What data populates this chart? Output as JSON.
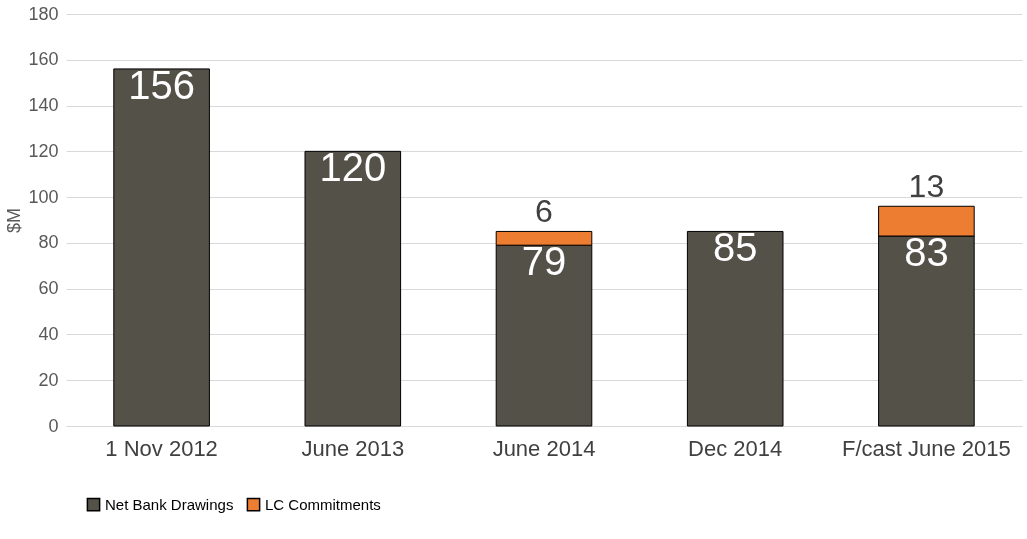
{
  "chart_data": {
    "type": "bar",
    "stacked": true,
    "ylabel": "$M",
    "categories": [
      "1 Nov 2012",
      "June 2013",
      "June 2014",
      "Dec 2014",
      "F/cast June 2015"
    ],
    "series": [
      {
        "name": "Net Bank Drawings",
        "color": "#545149",
        "values": [
          156,
          120,
          79,
          85,
          83
        ]
      },
      {
        "name": "LC Commitments",
        "color": "#ed7d31",
        "values": [
          null,
          null,
          6,
          null,
          13
        ]
      }
    ],
    "ylim": [
      0,
      180
    ],
    "yticks": [
      0,
      20,
      40,
      60,
      80,
      100,
      120,
      140,
      160,
      180
    ],
    "grid": "y",
    "legend": "bottom",
    "data_labels": true
  }
}
